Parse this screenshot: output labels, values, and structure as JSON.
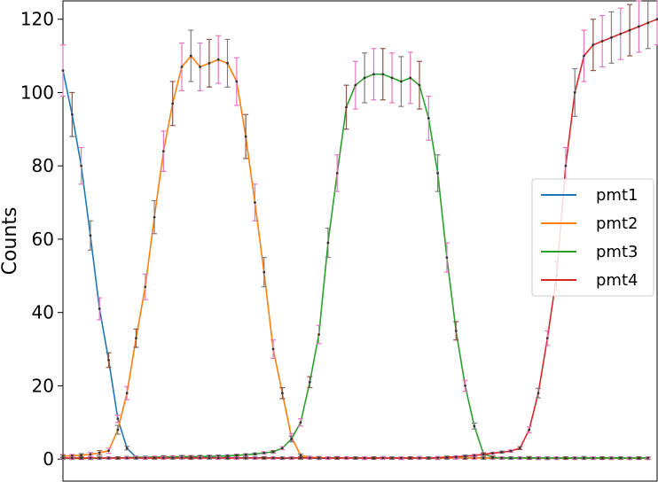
{
  "chart_data": {
    "type": "line",
    "ylabel": "Counts",
    "xlabel": "",
    "ylim": [
      -6,
      125
    ],
    "xlim": [
      0,
      65
    ],
    "yticks": [
      0,
      20,
      40,
      60,
      80,
      100,
      120
    ],
    "grid": false,
    "legend": "center-right",
    "x": [
      0,
      1,
      2,
      3,
      4,
      5,
      6,
      7,
      8,
      9,
      10,
      11,
      12,
      13,
      14,
      15,
      16,
      17,
      18,
      19,
      20,
      21,
      22,
      23,
      24,
      25,
      26,
      27,
      28,
      29,
      30,
      31,
      32,
      33,
      34,
      35,
      36,
      37,
      38,
      39,
      40,
      41,
      42,
      43,
      44,
      45,
      46,
      47,
      48,
      49,
      50,
      51,
      52,
      53,
      54,
      55,
      56,
      57,
      58,
      59,
      60,
      61,
      62,
      63,
      64,
      65
    ],
    "series": [
      {
        "name": "pmt1",
        "color": "#1f77b4",
        "values": [
          106,
          94,
          80,
          61,
          41,
          27,
          11,
          3,
          0.5,
          0.3,
          0.4,
          0.3,
          0.5,
          0.4,
          0.3,
          0.4,
          0.5,
          0.3,
          0.4,
          0.3,
          0.4,
          0.3,
          0.4,
          0.3,
          0.2,
          0.3,
          0.4,
          0.3,
          0.2,
          0.3,
          0.4,
          0.3,
          0.3,
          0.2,
          0.3,
          0.4,
          0.3,
          0.2,
          0.3,
          0.4,
          0.3,
          0.2,
          0.3,
          0.4,
          0.3,
          0.4,
          0.3,
          0.3,
          0.3,
          0.3,
          0.3,
          0.4,
          0.3,
          0.2,
          0.3,
          0.3,
          0.3,
          0.4,
          0.3,
          0.3,
          0.3,
          0.3,
          0.2,
          0.3,
          0.3,
          null
        ],
        "errors": [
          7,
          6,
          5,
          4,
          3,
          2,
          1,
          0.5,
          0.3,
          0.3,
          0.3,
          0.3,
          0.3,
          0.3,
          0.3,
          0.3,
          0.3,
          0.3,
          0.3,
          0.3,
          0.3,
          0.3,
          0.3,
          0.3,
          0.3,
          0.3,
          0.3,
          0.3,
          0.3,
          0.3,
          0.3,
          0.3,
          0.3,
          0.3,
          0.3,
          0.3,
          0.3,
          0.3,
          0.3,
          0.3,
          0.3,
          0.3,
          0.3,
          0.3,
          0.3,
          0.3,
          0.3,
          0.3,
          0.3,
          0.3,
          0.3,
          0.3,
          0.3,
          0.3,
          0.3,
          0.3,
          0.3,
          0.3,
          0.3,
          0.3,
          0.3,
          0.3,
          0.3,
          0.3,
          0.3,
          null
        ]
      },
      {
        "name": "pmt2",
        "color": "#ff7f0e",
        "values": [
          0.8,
          0.9,
          1.1,
          1.3,
          1.7,
          2.3,
          8,
          18,
          33,
          47,
          66,
          84,
          97,
          107,
          110,
          107,
          108,
          109,
          108,
          103,
          88,
          70,
          51,
          30,
          18,
          6,
          1,
          0.5,
          0.4,
          0.3,
          0.3,
          0.3,
          0.3,
          0.3,
          0.3,
          0.3,
          0.3,
          0.3,
          0.3,
          0.3,
          0.3,
          0.3,
          0.3,
          0.3,
          0.3,
          0.3,
          0.3,
          0.3,
          0.3,
          0.3,
          0.3,
          0.2,
          0.2,
          0.2,
          0.2,
          0.2,
          0.2,
          0.2,
          0.2,
          0.2,
          0.2,
          0.2,
          0.2,
          0.2,
          0.2,
          null
        ],
        "errors": [
          0.4,
          0.4,
          0.4,
          0.5,
          0.6,
          0.7,
          1.2,
          1.8,
          2.5,
          3.5,
          4.5,
          5.5,
          6,
          6.5,
          7,
          6.5,
          6.5,
          6.5,
          6.5,
          6.5,
          6,
          5,
          4,
          2.5,
          1.5,
          1,
          0.4,
          0.3,
          0.3,
          0.3,
          0.3,
          0.3,
          0.3,
          0.3,
          0.3,
          0.3,
          0.3,
          0.3,
          0.3,
          0.3,
          0.3,
          0.3,
          0.3,
          0.3,
          0.3,
          0.3,
          0.3,
          0.3,
          0.3,
          0.3,
          0.3,
          0.3,
          0.3,
          0.3,
          0.3,
          0.3,
          0.3,
          0.3,
          0.3,
          0.3,
          0.3,
          0.3,
          0.3,
          0.3,
          0.3,
          null
        ]
      },
      {
        "name": "pmt3",
        "color": "#2ca02c",
        "values": [
          0.2,
          0.2,
          0.2,
          0.2,
          0.3,
          0.3,
          0.3,
          0.4,
          0.5,
          0.5,
          0.5,
          0.6,
          0.6,
          0.7,
          0.7,
          0.7,
          0.8,
          0.8,
          0.9,
          1,
          1.2,
          1.4,
          1.7,
          2,
          3,
          5.5,
          10,
          21,
          34,
          59,
          78,
          96,
          102,
          104,
          105,
          105,
          104,
          103,
          104,
          102,
          93,
          78,
          55,
          35,
          20,
          9,
          1.5,
          0.5,
          0.3,
          0.3,
          0.3,
          0.3,
          0.3,
          0.3,
          0.3,
          0.3,
          0.3,
          0.3,
          0.3,
          0.3,
          0.3,
          0.3,
          0.3,
          0.3,
          0.3,
          null
        ],
        "errors": [
          0.3,
          0.3,
          0.3,
          0.3,
          0.3,
          0.3,
          0.3,
          0.3,
          0.3,
          0.3,
          0.3,
          0.3,
          0.3,
          0.3,
          0.3,
          0.3,
          0.3,
          0.3,
          0.3,
          0.3,
          0.3,
          0.3,
          0.3,
          0.3,
          0.4,
          0.8,
          1,
          1.5,
          2.5,
          4,
          5,
          6,
          6.5,
          6.8,
          7,
          7,
          6.8,
          6.8,
          7,
          6.5,
          6,
          5,
          4,
          2.5,
          1.5,
          0.8,
          0.3,
          0.3,
          0.3,
          0.3,
          0.3,
          0.3,
          0.3,
          0.3,
          0.3,
          0.3,
          0.3,
          0.3,
          0.3,
          0.3,
          0.3,
          0.3,
          0.3,
          0.3,
          0.3,
          null
        ]
      },
      {
        "name": "pmt4",
        "color": "#d62728",
        "values": [
          0.3,
          0.3,
          0.3,
          0.3,
          0.3,
          0.3,
          0.3,
          0.3,
          0.3,
          0.3,
          0.3,
          0.3,
          0.3,
          0.3,
          0.3,
          0.3,
          0.3,
          0.3,
          0.3,
          0.3,
          0.3,
          0.3,
          0.3,
          0.3,
          0.3,
          0.3,
          0.3,
          0.3,
          0.3,
          0.3,
          0.3,
          0.3,
          0.3,
          0.3,
          0.3,
          0.3,
          0.3,
          0.3,
          0.3,
          0.3,
          0.3,
          0.4,
          0.5,
          0.6,
          0.8,
          1,
          1.3,
          1.6,
          1.9,
          2.2,
          3,
          8,
          18,
          33,
          50,
          80,
          100,
          110,
          113,
          114,
          115,
          116,
          117,
          118,
          119,
          120
        ],
        "errors": [
          0.3,
          0.3,
          0.3,
          0.3,
          0.3,
          0.3,
          0.3,
          0.3,
          0.3,
          0.3,
          0.3,
          0.3,
          0.3,
          0.3,
          0.3,
          0.3,
          0.3,
          0.3,
          0.3,
          0.3,
          0.3,
          0.3,
          0.3,
          0.3,
          0.3,
          0.3,
          0.3,
          0.3,
          0.3,
          0.3,
          0.3,
          0.3,
          0.3,
          0.3,
          0.3,
          0.3,
          0.3,
          0.3,
          0.3,
          0.3,
          0.3,
          0.3,
          0.3,
          0.3,
          0.3,
          0.3,
          0.3,
          0.3,
          0.3,
          0.3,
          0.4,
          0.8,
          1.3,
          2,
          4,
          5,
          6.5,
          7,
          7,
          7,
          7,
          7,
          7,
          7,
          7,
          7
        ]
      }
    ]
  }
}
